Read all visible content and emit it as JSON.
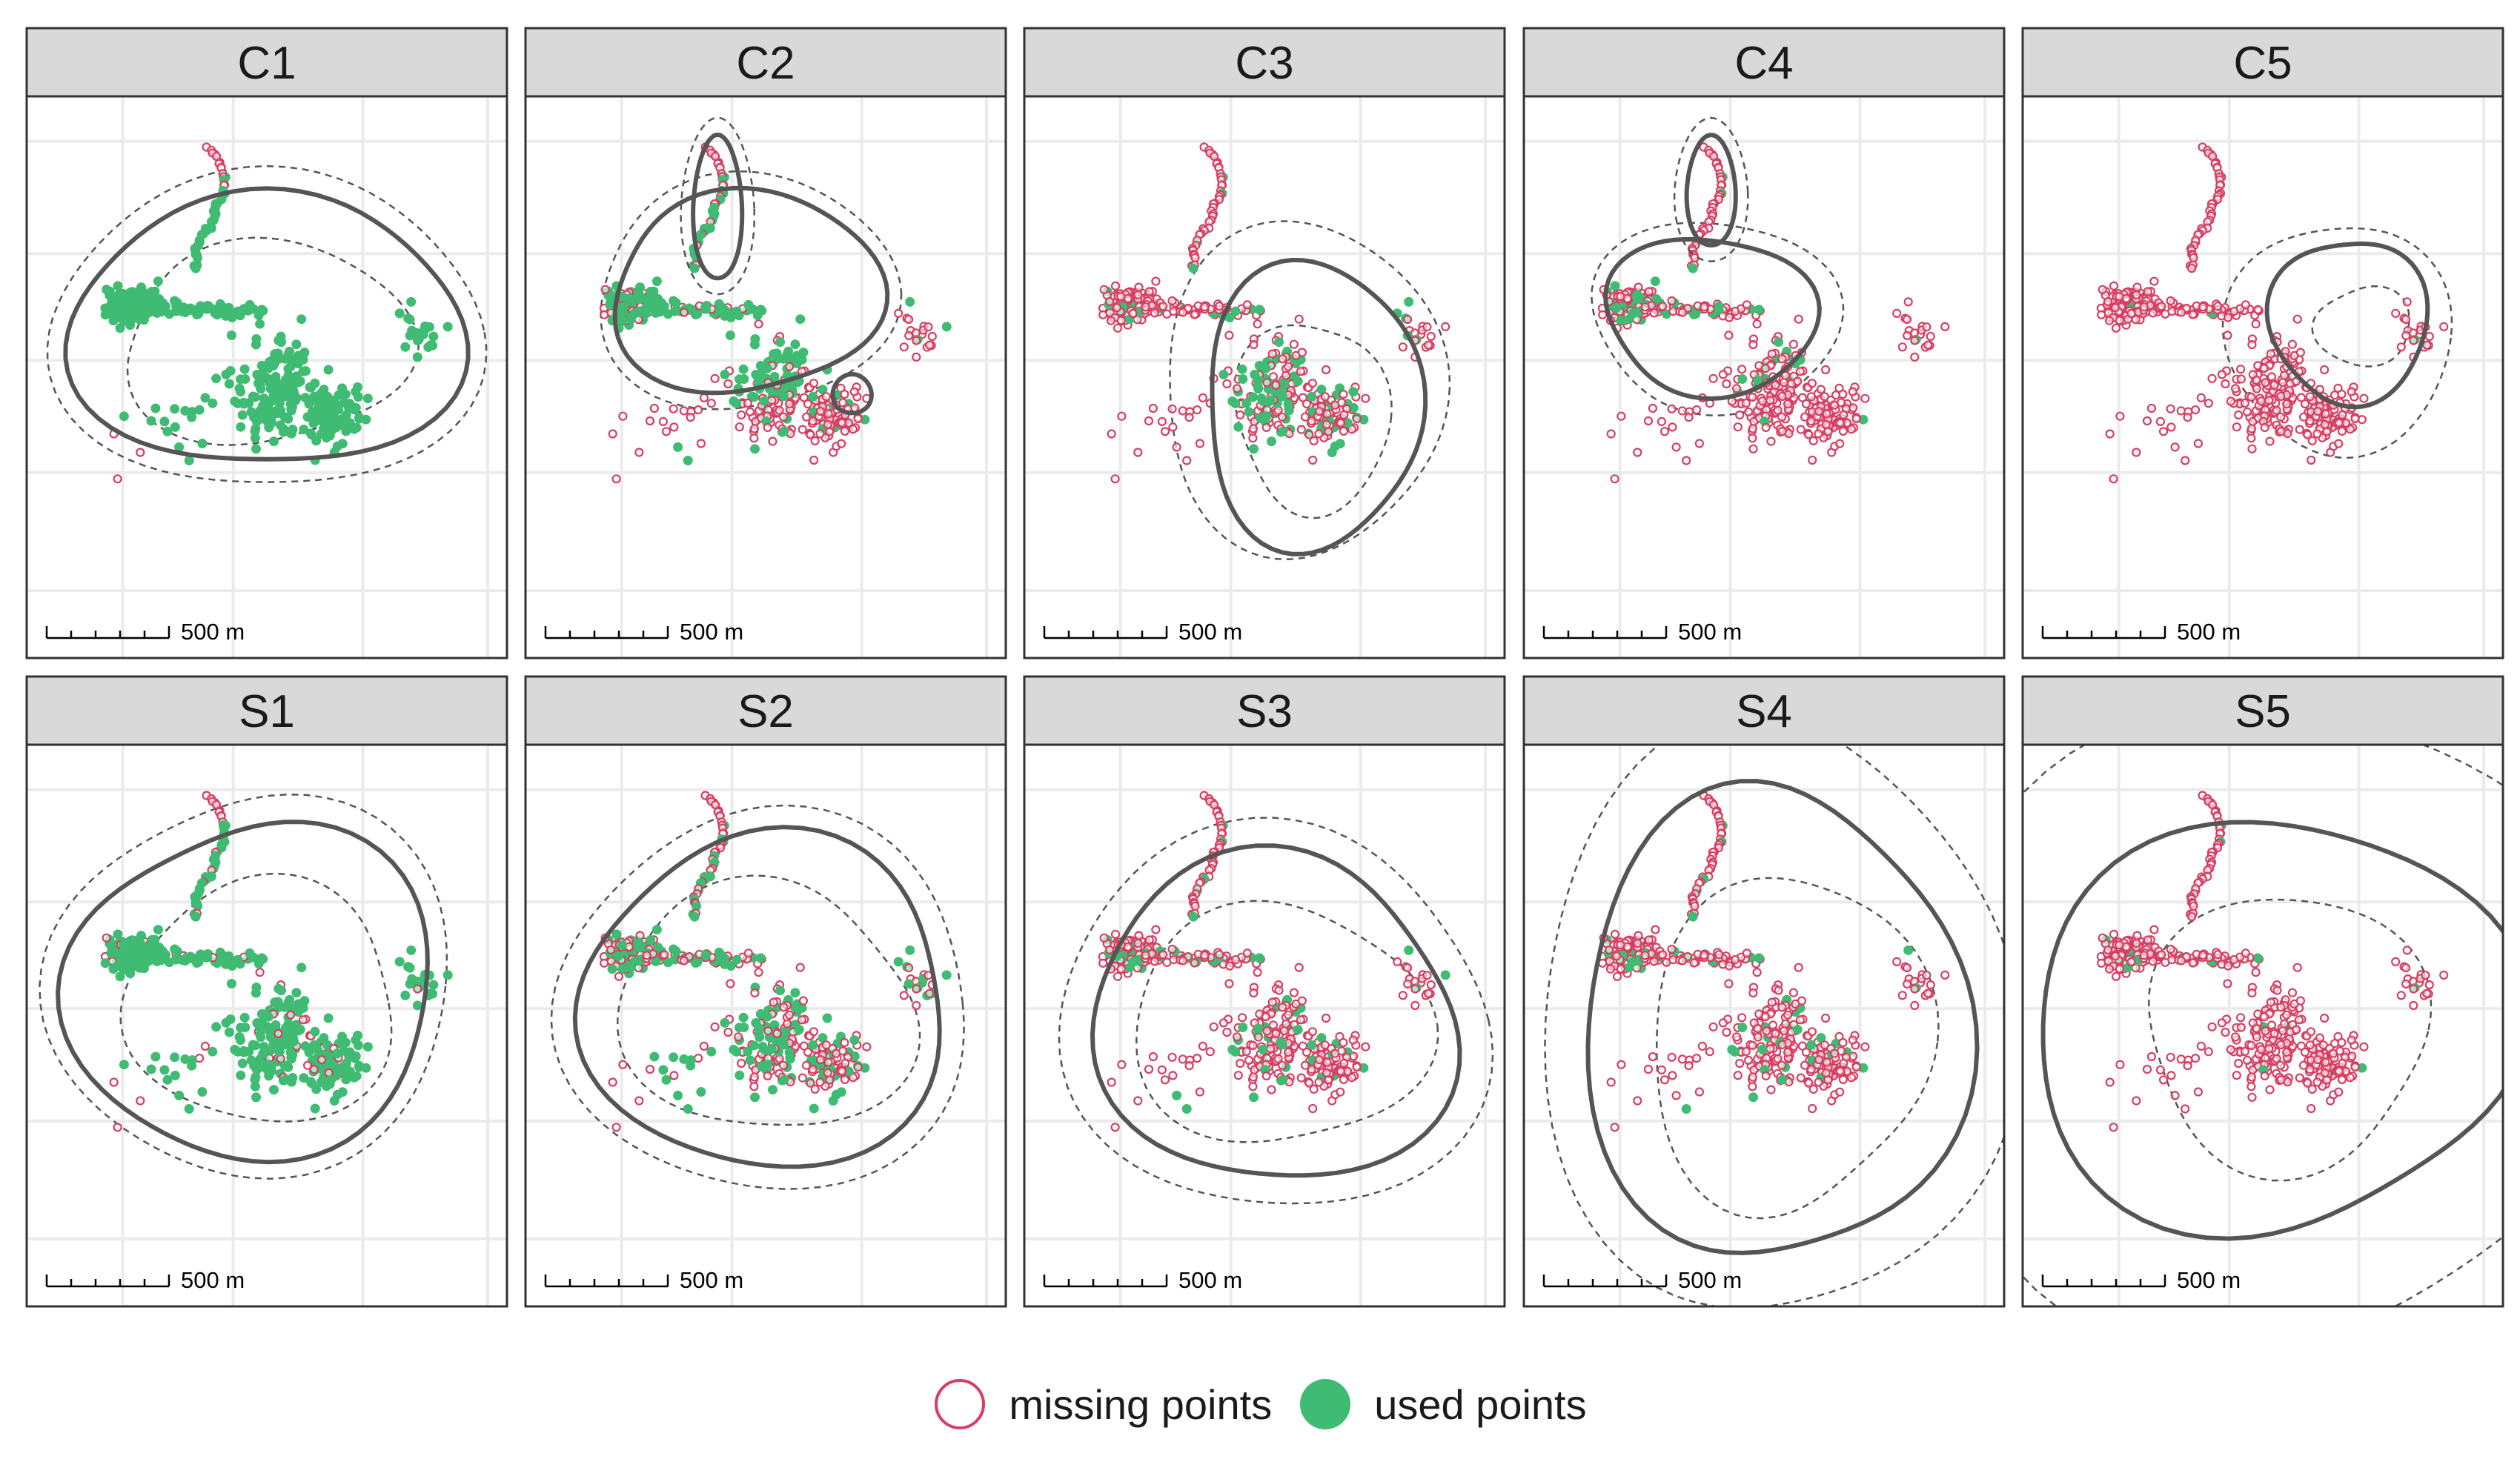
{
  "chart_data": {
    "type": "scatter",
    "facets": [
      "C1",
      "C2",
      "C3",
      "C4",
      "C5",
      "S1",
      "S2",
      "S3",
      "S4",
      "S5"
    ],
    "scale_bar": {
      "label": "500 m",
      "length_m": 500
    },
    "legend": {
      "placement": "bottom",
      "entries": [
        "missing points",
        "used points"
      ]
    },
    "series": [
      {
        "name": "missing points",
        "marker": "hollow-circle",
        "color": "#d63e62"
      },
      {
        "name": "used points",
        "marker": "filled-circle",
        "color": "#3fbb73"
      }
    ],
    "contours": [
      {
        "style": "solid",
        "color": "#555555"
      },
      {
        "style": "dashed",
        "color": "#555555"
      }
    ],
    "used_fraction_by_panel": {
      "C1": 0.78,
      "C2": 0.55,
      "C3": 0.3,
      "C4": 0.2,
      "C5": 0.04,
      "S1": 0.65,
      "S2": 0.35,
      "S3": 0.12,
      "S4": 0.1,
      "S5": 0.03
    },
    "grid": true,
    "axes_labels_shown": false
  },
  "legend": {
    "missing_label": "missing points",
    "used_label": "used points"
  },
  "colors": {
    "missing": "#d63e62",
    "used": "#3fbb73",
    "contour": "#555555",
    "strip_bg": "#d9d9d9",
    "grid": "#ebebeb",
    "border": "#333333"
  }
}
